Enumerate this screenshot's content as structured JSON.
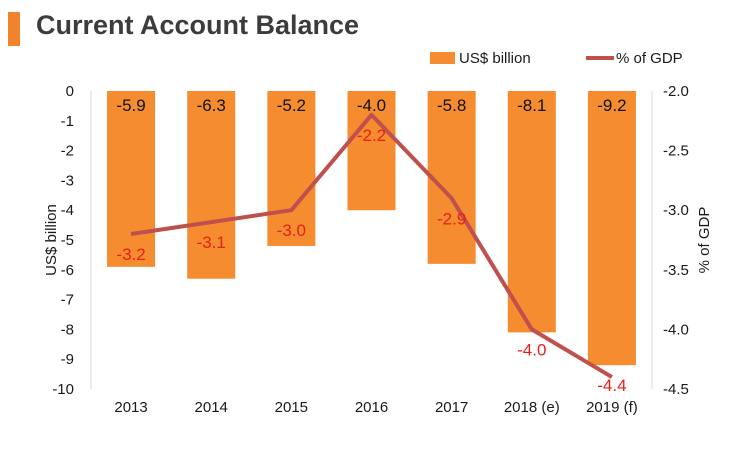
{
  "header": {
    "title": "Current Account Balance"
  },
  "colors": {
    "bar": "#f58c2f",
    "line": "#c0504d",
    "line_label": "#e8201a",
    "accent": "#f0832c"
  },
  "chart_data": {
    "type": "bar",
    "categories": [
      "2013",
      "2014",
      "2015",
      "2016",
      "2017",
      "2018 (e)",
      "2019 (f)"
    ],
    "series": [
      {
        "name": "US$ billion",
        "type": "bar",
        "axis": "left",
        "values": [
          -5.9,
          -6.3,
          -5.2,
          -4.0,
          -5.8,
          -8.1,
          -9.2
        ],
        "labels": [
          "-5.9",
          "-6.3",
          "-5.2",
          "-4.0",
          "-5.8",
          "-8.1",
          "-9.2"
        ]
      },
      {
        "name": "% of GDP",
        "type": "line",
        "axis": "right",
        "values": [
          -3.2,
          -3.1,
          -3.0,
          -2.2,
          -2.9,
          -4.0,
          -4.4
        ],
        "labels": [
          "-3.2",
          "-3.1",
          "-3.0",
          "-2.2",
          "-2.9",
          "-4.0",
          "-4.4"
        ]
      }
    ],
    "title": "Current Account Balance",
    "ylabel": "US$ billion",
    "y2label": "% of GDP",
    "ylim": [
      -10,
      0
    ],
    "y2lim": [
      -4.5,
      -2.0
    ],
    "yticks": [
      "0",
      "-1",
      "-2",
      "-3",
      "-4",
      "-5",
      "-6",
      "-7",
      "-8",
      "-9",
      "-10"
    ],
    "y2ticks": [
      "-2.0",
      "-2.5",
      "-3.0",
      "-3.5",
      "-4.0",
      "-4.5"
    ],
    "legend_position": "top-right",
    "grid": false
  }
}
